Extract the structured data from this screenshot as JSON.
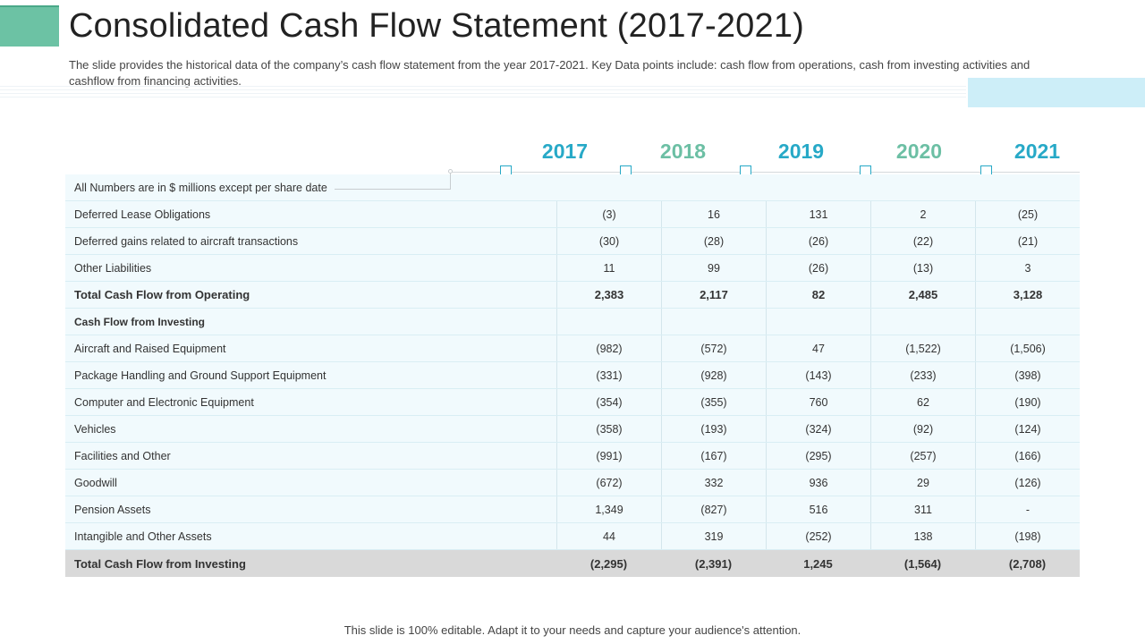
{
  "slide": {
    "title": "Consolidated Cash Flow Statement (2017-2021)",
    "subtitle": "The slide provides the historical data of the company’s cash flow statement from the year 2017-2021. Key Data points include: cash flow from operations, cash from investing activities and cashflow from financing activities.",
    "footer": "This slide is 100% editable. Adapt it to your needs and capture your audience's attention."
  },
  "colors": {
    "accent_green": "#6cc2a4",
    "year_blue": "#27a9c7",
    "year_green": "#6cbfa4",
    "table_row_bg": "#f1fafd",
    "total_row_bg": "#d9d9d9"
  },
  "years": [
    {
      "label": "2017",
      "color": "#27a9c7"
    },
    {
      "label": "2018",
      "color": "#6cbfa4"
    },
    {
      "label": "2019",
      "color": "#27a9c7"
    },
    {
      "label": "2020",
      "color": "#6cbfa4"
    },
    {
      "label": "2021",
      "color": "#27a9c7"
    }
  ],
  "table": {
    "note": "All Numbers are in $ millions except per share date",
    "rows": [
      {
        "label": "Deferred Lease Obligations",
        "values": [
          "(3)",
          "16",
          "131",
          "2",
          "(25)"
        ]
      },
      {
        "label": "Deferred gains related to aircraft transactions",
        "values": [
          "(30)",
          "(28)",
          "(26)",
          "(22)",
          "(21)"
        ]
      },
      {
        "label": "Other Liabilities",
        "values": [
          "11",
          "99",
          "(26)",
          "(13)",
          "3"
        ]
      },
      {
        "label": "Total  Cash Flow from Operating",
        "values": [
          "2,383",
          "2,117",
          "82",
          "2,485",
          "3,128"
        ]
      },
      {
        "label": "Cash Flow from Investing",
        "values": [
          "",
          "",
          "",
          "",
          ""
        ]
      },
      {
        "label": "Aircraft and Raised Equipment",
        "values": [
          "(982)",
          "(572)",
          "47",
          "(1,522)",
          "(1,506)"
        ]
      },
      {
        "label": "Package Handling and Ground Support Equipment",
        "values": [
          "(331)",
          "(928)",
          "(143)",
          "(233)",
          "(398)"
        ]
      },
      {
        "label": "Computer and Electronic Equipment",
        "values": [
          "(354)",
          "(355)",
          "760",
          "62",
          "(190)"
        ]
      },
      {
        "label": "Vehicles",
        "values": [
          "(358)",
          "(193)",
          "(324)",
          "(92)",
          "(124)"
        ]
      },
      {
        "label": "Facilities and Other",
        "values": [
          "(991)",
          "(167)",
          "(295)",
          "(257)",
          "(166)"
        ]
      },
      {
        "label": "Goodwill",
        "values": [
          "(672)",
          "332",
          "936",
          "29",
          "(126)"
        ]
      },
      {
        "label": "Pension Assets",
        "values": [
          "1,349",
          "(827)",
          "516",
          "311",
          "-"
        ]
      },
      {
        "label": "Intangible and Other Assets",
        "values": [
          "44",
          "319",
          "(252)",
          "138",
          "(198)"
        ]
      },
      {
        "label": "Total Cash Flow from Investing",
        "values": [
          "(2,295)",
          "(2,391)",
          "1,245",
          "(1,564)",
          "(2,708)"
        ]
      }
    ]
  }
}
